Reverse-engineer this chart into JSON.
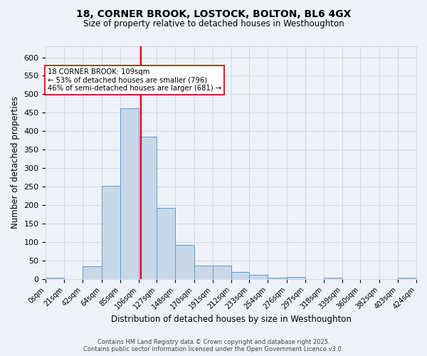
{
  "title_line1": "18, CORNER BROOK, LOSTOCK, BOLTON, BL6 4GX",
  "title_line2": "Size of property relative to detached houses in Westhoughton",
  "xlabel": "Distribution of detached houses by size in Westhoughton",
  "ylabel": "Number of detached properties",
  "bin_edges": [
    0,
    21,
    42,
    64,
    85,
    106,
    127,
    148,
    170,
    191,
    212,
    233,
    254,
    276,
    297,
    318,
    339,
    360,
    382,
    403,
    424
  ],
  "bar_heights": [
    3,
    0,
    35,
    253,
    463,
    385,
    192,
    93,
    36,
    36,
    19,
    12,
    4,
    5,
    0,
    4,
    0,
    0,
    0,
    4
  ],
  "bar_color": "#c8d8e8",
  "bar_edge_color": "#5b9bd5",
  "grid_color": "#d0d8e8",
  "background_color": "#eef2f8",
  "vline_x": 109,
  "vline_color": "#cc0000",
  "annotation_text": "18 CORNER BROOK: 109sqm\n← 53% of detached houses are smaller (796)\n46% of semi-detached houses are larger (681) →",
  "annotation_box_color": "#ffffff",
  "annotation_box_edge": "#cc0000",
  "ylim": [
    0,
    630
  ],
  "yticks": [
    0,
    50,
    100,
    150,
    200,
    250,
    300,
    350,
    400,
    450,
    500,
    550,
    600
  ],
  "footer_line1": "Contains HM Land Registry data © Crown copyright and database right 2025.",
  "footer_line2": "Contains public sector information licensed under the Open Government Licence v3.0.",
  "tick_labels": [
    "0sqm",
    "21sqm",
    "42sqm",
    "64sqm",
    "85sqm",
    "106sqm",
    "127sqm",
    "148sqm",
    "170sqm",
    "191sqm",
    "212sqm",
    "233sqm",
    "254sqm",
    "276sqm",
    "297sqm",
    "318sqm",
    "339sqm",
    "360sqm",
    "382sqm",
    "403sqm",
    "424sqm"
  ]
}
